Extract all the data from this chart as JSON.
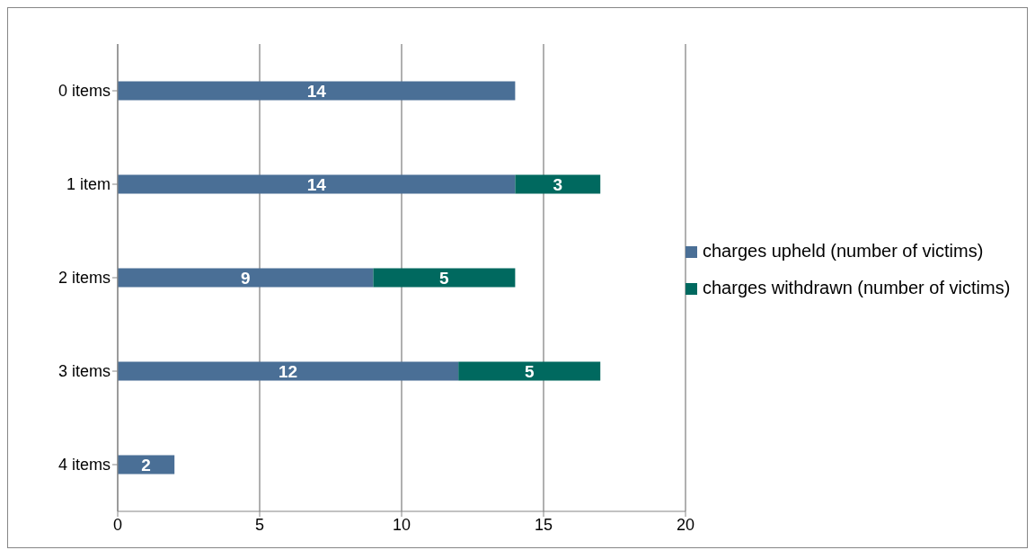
{
  "chart_data": {
    "type": "bar",
    "orientation": "horizontal",
    "stacked": true,
    "categories": [
      "0 items",
      "1 item",
      "2 items",
      "3 items",
      "4 items"
    ],
    "series": [
      {
        "name": "charges upheld (number of victims)",
        "color": "#4a6f96",
        "values": [
          14,
          14,
          9,
          12,
          2
        ]
      },
      {
        "name": "charges withdrawn (number of victims)",
        "color": "#00695f",
        "values": [
          null,
          3,
          5,
          5,
          null
        ]
      }
    ],
    "xlim": [
      0,
      20
    ],
    "xticks": [
      0,
      5,
      10,
      15,
      20
    ],
    "grid": "x",
    "legend": "right",
    "data_labels": true
  }
}
